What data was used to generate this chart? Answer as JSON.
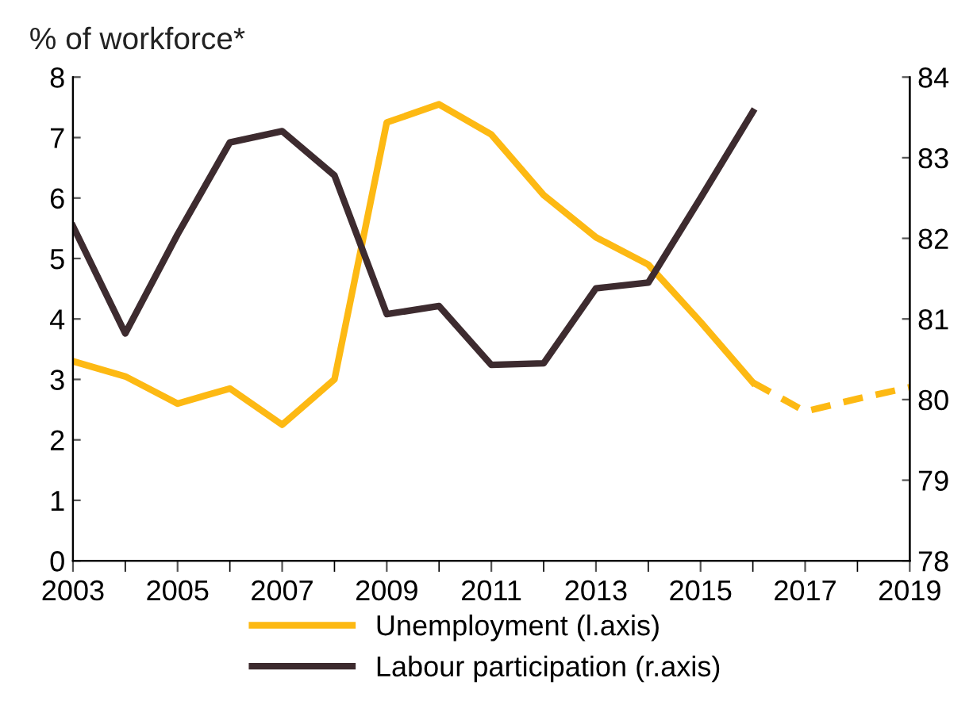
{
  "chart_data": {
    "type": "line",
    "ylabel": "% of workforce*",
    "x": [
      2003,
      2004,
      2005,
      2006,
      2007,
      2008,
      2009,
      2010,
      2011,
      2012,
      2013,
      2014,
      2015,
      2016
    ],
    "series": [
      {
        "name": "Unemployment (l.axis)",
        "color": "#fdb913",
        "values": [
          3.3,
          3.05,
          2.6,
          2.85,
          2.25,
          3.0,
          7.25,
          7.55,
          7.05,
          6.05,
          5.35,
          4.9,
          3.95,
          2.95
        ]
      },
      {
        "color": "#fdb913",
        "line_style": "dashed",
        "x": [
          2016,
          2017,
          2018,
          2019
        ],
        "values": [
          2.95,
          2.47,
          2.68,
          2.87
        ]
      },
      {
        "name": "Labour participation (r.axis)",
        "color": "#3d2b2f",
        "axis": "y2",
        "values": [
          82.15,
          80.82,
          82.05,
          83.19,
          83.33,
          82.78,
          81.06,
          81.16,
          80.43,
          80.45,
          81.38,
          81.45,
          82.5,
          83.57
        ]
      }
    ],
    "xlim": [
      2003,
      2019
    ],
    "xticks": [
      2003,
      2005,
      2007,
      2009,
      2011,
      2013,
      2015,
      2017,
      2019
    ],
    "ylim": [
      0,
      8
    ],
    "yticks": [
      0,
      1,
      2,
      3,
      4,
      5,
      6,
      7,
      8
    ],
    "y2lim": [
      78,
      84
    ],
    "y2ticks": [
      78,
      79,
      80,
      81,
      82,
      83,
      84
    ],
    "grid": false,
    "legend": "bottom",
    "line_style": "solid",
    "marker": "none"
  }
}
